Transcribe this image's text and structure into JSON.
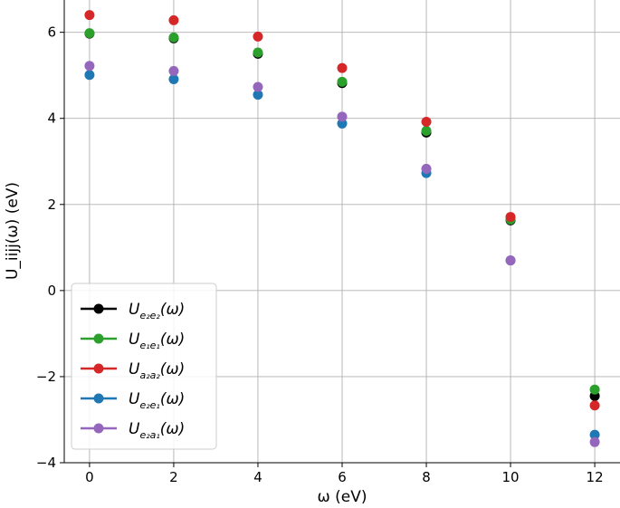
{
  "chart_data": {
    "type": "scatter",
    "xlabel": "ω (eV)",
    "ylabel": "U_iijj(ω) (eV)",
    "xlim": [
      -0.6,
      12.6
    ],
    "ylim": [
      -4.0,
      6.75
    ],
    "xticks": [
      0,
      2,
      4,
      6,
      8,
      10,
      12
    ],
    "yticks": [
      -4,
      -2,
      0,
      2,
      4,
      6
    ],
    "grid": true,
    "legend_position": "lower-left",
    "x": [
      0,
      2,
      4,
      6,
      8,
      10,
      12
    ],
    "series": [
      {
        "name": "U_e2e2(ω)",
        "label_base": "U",
        "label_sub": "e₂e₂",
        "label_arg": "(ω)",
        "color": "#000000",
        "values": [
          5.97,
          5.86,
          5.5,
          4.82,
          3.67,
          1.63,
          -2.45
        ]
      },
      {
        "name": "U_e1e1(ω)",
        "label_base": "U",
        "label_sub": "e₁e₁",
        "label_arg": "(ω)",
        "color": "#2ca02c",
        "values": [
          5.98,
          5.88,
          5.53,
          4.85,
          3.71,
          1.65,
          -2.3
        ]
      },
      {
        "name": "U_a2a2(ω)",
        "label_base": "U",
        "label_sub": "a₂a₂",
        "label_arg": "(ω)",
        "color": "#d62728",
        "values": [
          6.4,
          6.28,
          5.9,
          5.17,
          3.92,
          1.71,
          -2.67
        ]
      },
      {
        "name": "U_e2e1(ω)",
        "label_base": "U",
        "label_sub": "e₂e₁",
        "label_arg": "(ω)",
        "color": "#1f77b4",
        "values": [
          5.01,
          4.91,
          4.55,
          3.88,
          2.73,
          0.7,
          -3.35
        ]
      },
      {
        "name": "U_e2a1(ω)",
        "label_base": "U",
        "label_sub": "e₂a₁",
        "label_arg": "(ω)",
        "color": "#9467bd",
        "values": [
          5.22,
          5.1,
          4.73,
          4.04,
          2.83,
          0.7,
          -3.52
        ]
      }
    ]
  }
}
